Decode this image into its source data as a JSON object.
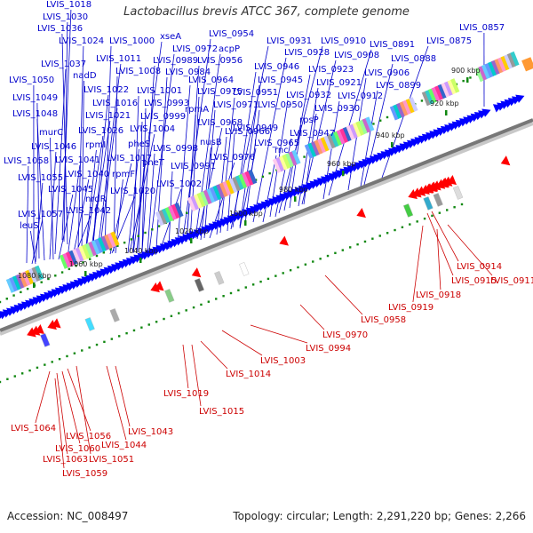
{
  "title": "Lactobacillus brevis ATCC 367, complete genome",
  "footer": {
    "accession": "Accession: NC_008497",
    "summary": "Topology: circular; Length: 2,291,220 bp; Genes: 2,266"
  },
  "colors": {
    "forward_gene_label": "#0000cc",
    "reverse_gene_label": "#cc0000",
    "forward_strand_arrow": "#0000ff",
    "reverse_strand_arrow": "#ff0000",
    "backbone": "#777777",
    "tick_dots": "#118811"
  },
  "scale_labels": [
    "900 kbp",
    "920 kbp",
    "940 kbp",
    "960 kbp",
    "980 kbp",
    "1000 kbp",
    "1020 kbp",
    "1040 kbp",
    "1060 kbp",
    "1080 kbp"
  ],
  "top_labels": [
    "LVIS_1018",
    "LVIS_1030",
    "LVIS_1036",
    "LVIS_1024",
    "LVIS_1000",
    "xseA",
    "LVIS_0954",
    "LVIS_0931",
    "LVIS_0910",
    "LVIS_0891",
    "LVIS_0875",
    "LVIS_0857",
    "LVIS_0972",
    "acpP",
    "LVIS_0928",
    "LVIS_0908",
    "LVIS_0888",
    "LVIS_1037",
    "LVIS_1011",
    "LVIS_0989",
    "LVIS_0956",
    "LVIS_0946",
    "LVIS_0923",
    "LVIS_0906",
    "nadD",
    "LVIS_1008",
    "LVIS_0984",
    "LVIS_0945",
    "LVIS_0921",
    "LVIS_0899",
    "LVIS_1050",
    "LVIS_1022",
    "LVIS_1001",
    "LVIS_0964",
    "LVIS_0951",
    "LVIS_0932",
    "LVIS_0912",
    "LVIS_1049",
    "LVIS_1016",
    "LVIS_0993",
    "LVIS_0975",
    "LVIS_0971",
    "LVIS_0950",
    "LVIS_0930",
    "LVIS_1048",
    "LVIS_1021",
    "LVIS_0999",
    "rpmA",
    "rpsP",
    "murC",
    "LVIS_1026",
    "LVIS_1004",
    "LVIS_0968",
    "LVIS_0949",
    "LVIS_1046",
    "rpmI",
    "pheS",
    "LVIS_0966",
    "LVIS_0947",
    "LVIS_1058",
    "LVIS_1041",
    "LVIS_1017",
    "nusB",
    "LVIS_0965",
    "rnc",
    "pheT",
    "LVIS_0998",
    "LVIS_0976",
    "LVIS_1055",
    "LVIS_1040",
    "rpmF",
    "LVIS_0991",
    "LVIS_1045",
    "LVIS_1020",
    "LVIS_1002",
    "nrdR",
    "LVIS_1057",
    "LVIS_1042",
    "leuS"
  ],
  "bottom_labels": [
    "LVIS_0914",
    "LVIS_0915",
    "LVIS_0911",
    "LVIS_0918",
    "LVIS_0919",
    "LVIS_0958",
    "LVIS_0970",
    "LVIS_0994",
    "LVIS_1003",
    "LVIS_1014",
    "LVIS_1019",
    "LVIS_1015",
    "LVIS_1043",
    "LVIS_1044",
    "LVIS_1064",
    "LVIS_1056",
    "LVIS_1060",
    "LVIS_1063",
    "LVIS_1051",
    "LVIS_1059"
  ]
}
